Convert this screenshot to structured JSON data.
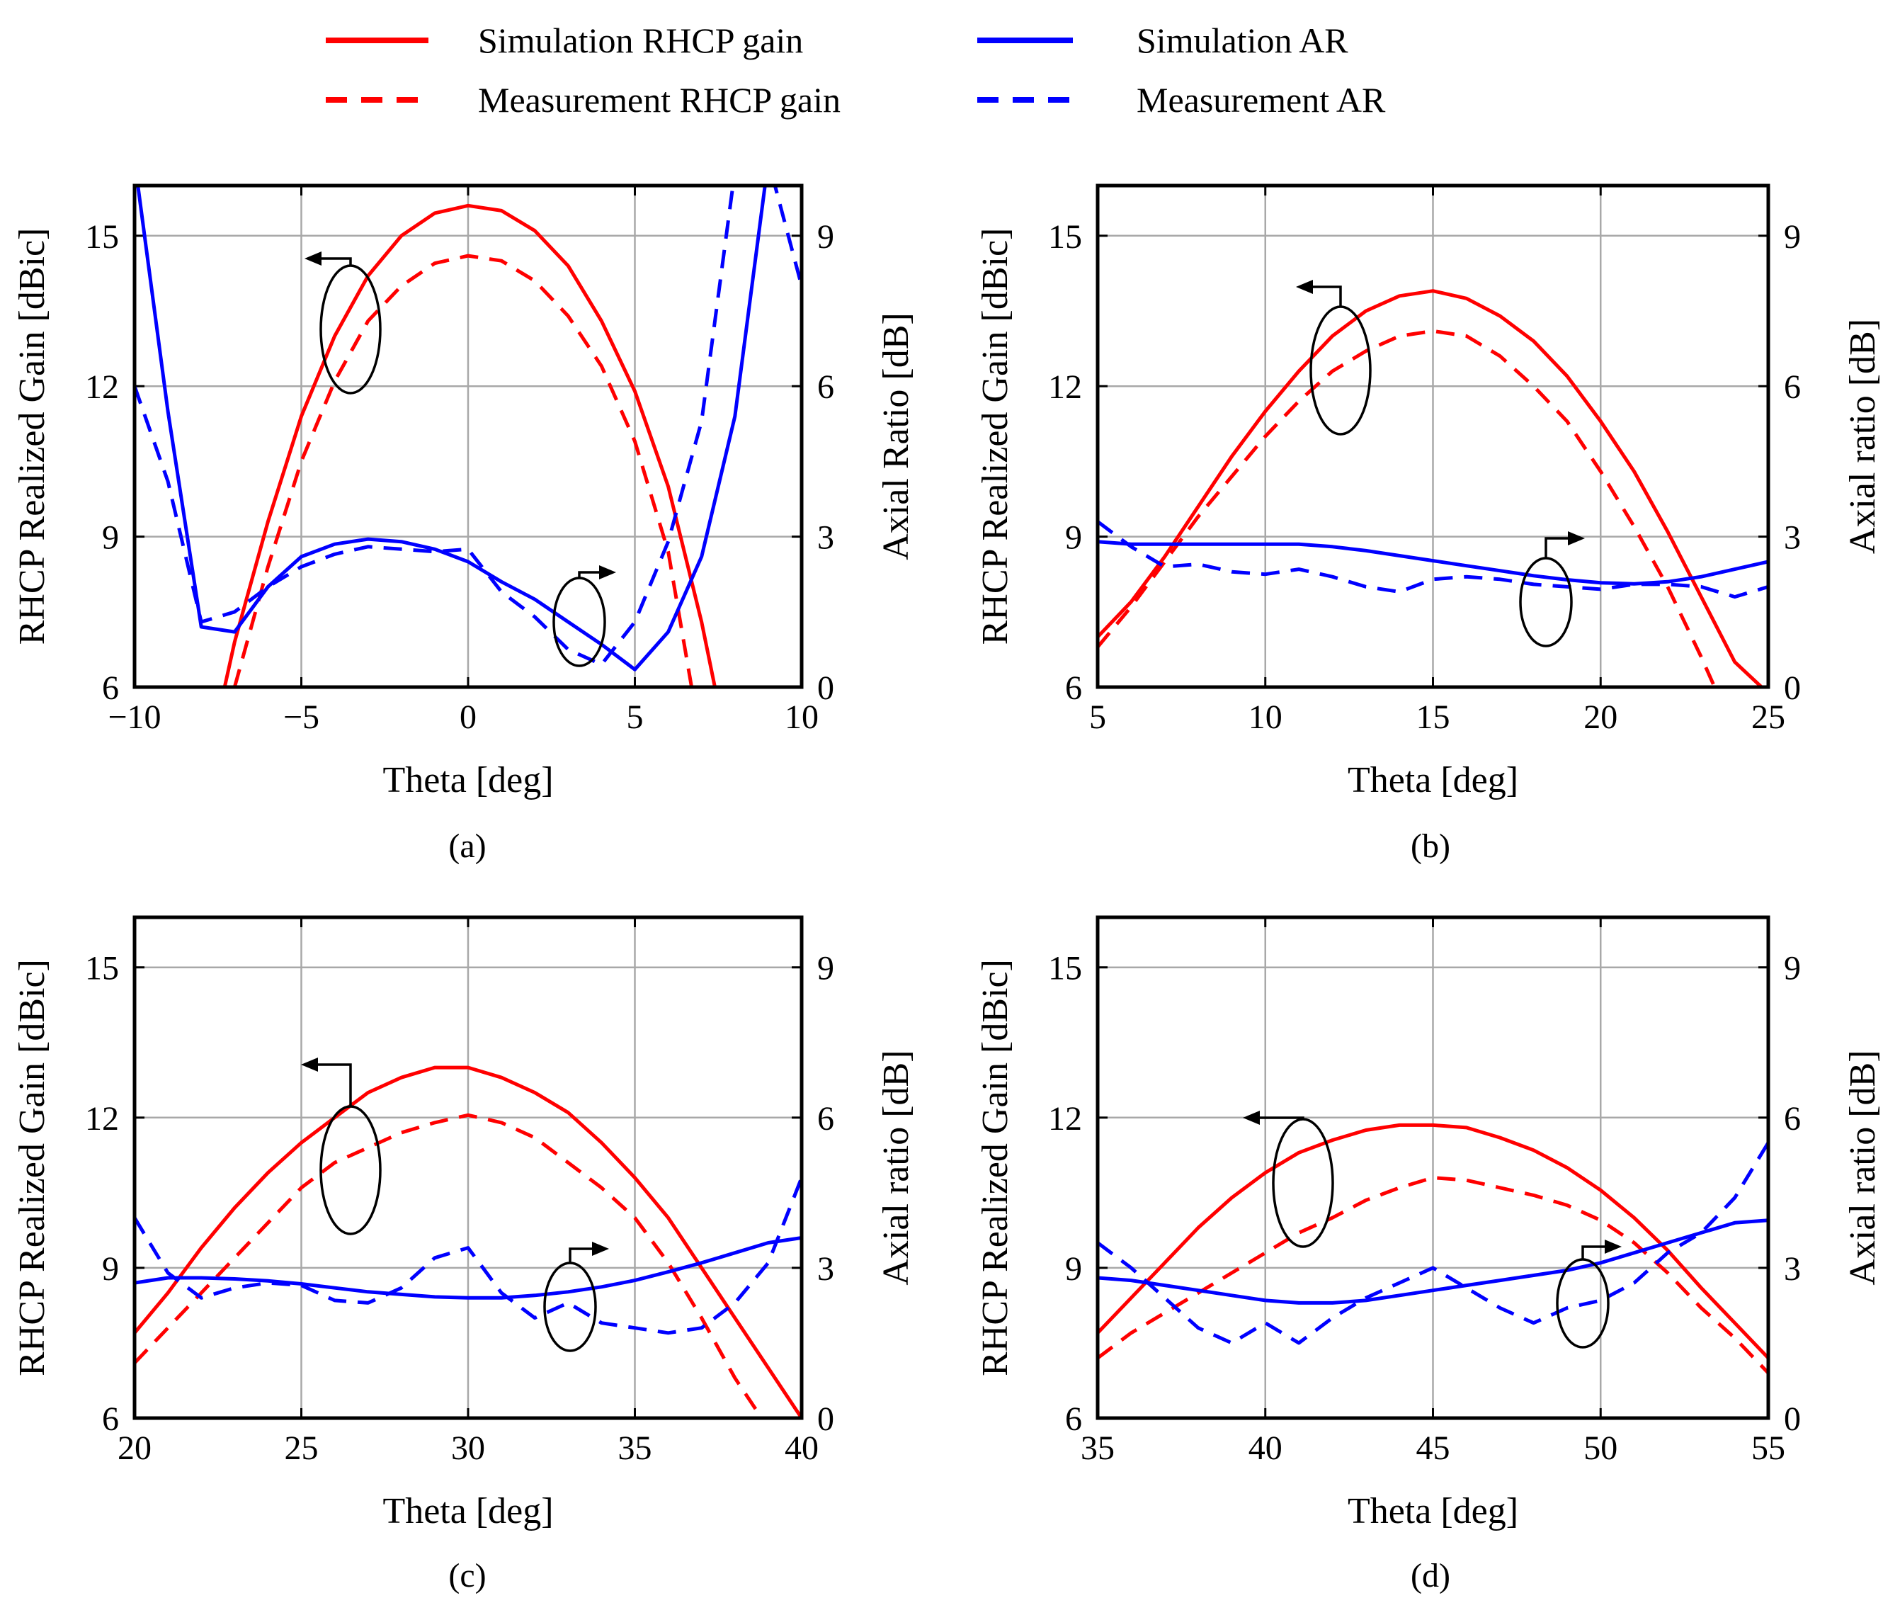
{
  "colors": {
    "gain": "#ff0000",
    "ar": "#0000ff",
    "grid": "#a8a8a8",
    "axis": "#000000"
  },
  "legend": [
    {
      "label": "Simulation RHCP gain",
      "color": "#ff0000",
      "style": "solid"
    },
    {
      "label": "Simulation AR",
      "color": "#0000ff",
      "style": "solid"
    },
    {
      "label": "Measurement RHCP gain",
      "color": "#ff0000",
      "style": "dashed"
    },
    {
      "label": "Measurement AR",
      "color": "#0000ff",
      "style": "dashed"
    }
  ],
  "chart_data": [
    {
      "id": "a",
      "type": "line",
      "sublabel": "(a)",
      "xlabel": "Theta [deg]",
      "ylabel": "RHCP Realized Gain [dBic]",
      "y2label": "Axial Ratio [dB]",
      "xlim": [
        -10,
        10
      ],
      "xticks": [
        -10,
        -5,
        0,
        5,
        10
      ],
      "xtick_labels": [
        "−10",
        "−5",
        "0",
        "5",
        "10"
      ],
      "ylim": [
        6,
        16
      ],
      "yticks": [
        6,
        9,
        12,
        15
      ],
      "y2lim": [
        0,
        10
      ],
      "y2ticks": [
        0,
        3,
        6,
        9
      ],
      "grid": true,
      "series": [
        {
          "name": "Simulation RHCP gain",
          "axis": "left",
          "style": "solid",
          "x": [
            -7.3,
            -7,
            -6,
            -5,
            -4,
            -3,
            -2,
            -1,
            0,
            1,
            2,
            3,
            4,
            5,
            6,
            7,
            7.4
          ],
          "y": [
            6,
            6.9,
            9.3,
            11.4,
            13.0,
            14.2,
            15.0,
            15.45,
            15.6,
            15.5,
            15.1,
            14.4,
            13.3,
            11.9,
            10.0,
            7.3,
            6
          ]
        },
        {
          "name": "Measurement RHCP gain",
          "axis": "left",
          "style": "dashed",
          "x": [
            -7,
            -6,
            -5,
            -4,
            -3,
            -2,
            -1,
            0,
            1,
            2,
            3,
            4,
            5,
            6,
            6.7
          ],
          "y": [
            6,
            8.4,
            10.5,
            12.1,
            13.3,
            14.0,
            14.45,
            14.6,
            14.5,
            14.1,
            13.4,
            12.4,
            10.9,
            8.7,
            6
          ]
        },
        {
          "name": "Simulation AR",
          "axis": "right",
          "style": "solid",
          "x": [
            -10,
            -9,
            -8,
            -7,
            -6,
            -5,
            -4,
            -3,
            -2,
            -1,
            0,
            1,
            2,
            3,
            4,
            5,
            6,
            7,
            8,
            9,
            10
          ],
          "y": [
            10.5,
            5.5,
            1.2,
            1.1,
            2.0,
            2.6,
            2.85,
            2.95,
            2.9,
            2.75,
            2.5,
            2.1,
            1.75,
            1.3,
            0.85,
            0.35,
            1.1,
            2.6,
            5.4,
            10.5,
            10.5
          ]
        },
        {
          "name": "Measurement AR",
          "axis": "right",
          "style": "dashed",
          "x": [
            -10,
            -9,
            -8,
            -7,
            -6,
            -5,
            -4,
            -3,
            -2,
            -1,
            0,
            1,
            2,
            3,
            4,
            5,
            6,
            7,
            8,
            9,
            10
          ],
          "y": [
            6.0,
            4.1,
            1.3,
            1.5,
            2.0,
            2.4,
            2.65,
            2.8,
            2.75,
            2.7,
            2.75,
            1.9,
            1.4,
            0.75,
            0.45,
            1.3,
            2.9,
            5.3,
            10.3,
            10.5,
            8.0
          ]
        }
      ]
    },
    {
      "id": "b",
      "type": "line",
      "sublabel": "(b)",
      "xlabel": "Theta [deg]",
      "ylabel": "RHCP Realized Gain [dBic]",
      "y2label": "Axial ratio [dB]",
      "xlim": [
        5,
        25
      ],
      "xticks": [
        5,
        10,
        15,
        20,
        25
      ],
      "xtick_labels": [
        "5",
        "10",
        "15",
        "20",
        "25"
      ],
      "ylim": [
        6,
        16
      ],
      "yticks": [
        6,
        9,
        12,
        15
      ],
      "y2lim": [
        0,
        10
      ],
      "y2ticks": [
        0,
        3,
        6,
        9
      ],
      "grid": true,
      "series": [
        {
          "name": "Simulation RHCP gain",
          "axis": "left",
          "style": "solid",
          "x": [
            5,
            6,
            7,
            8,
            9,
            10,
            11,
            12,
            13,
            14,
            15,
            16,
            17,
            18,
            19,
            20,
            21,
            22,
            23,
            24,
            24.8
          ],
          "y": [
            7.0,
            7.7,
            8.6,
            9.6,
            10.6,
            11.5,
            12.3,
            13.0,
            13.5,
            13.8,
            13.9,
            13.75,
            13.4,
            12.9,
            12.2,
            11.3,
            10.3,
            9.1,
            7.8,
            6.5,
            6
          ]
        },
        {
          "name": "Measurement RHCP gain",
          "axis": "left",
          "style": "dashed",
          "x": [
            5,
            6,
            7,
            8,
            9,
            10,
            11,
            12,
            13,
            14,
            15,
            16,
            17,
            18,
            19,
            20,
            21,
            22,
            23,
            23.4
          ],
          "y": [
            6.8,
            7.6,
            8.5,
            9.4,
            10.2,
            11.0,
            11.7,
            12.3,
            12.7,
            13.0,
            13.1,
            13.0,
            12.6,
            12.0,
            11.3,
            10.3,
            9.2,
            8.0,
            6.6,
            6
          ]
        },
        {
          "name": "Simulation AR",
          "axis": "right",
          "style": "solid",
          "x": [
            5,
            6,
            7,
            8,
            9,
            10,
            11,
            12,
            13,
            14,
            15,
            16,
            17,
            18,
            19,
            20,
            21,
            22,
            23,
            24,
            25
          ],
          "y": [
            2.9,
            2.85,
            2.85,
            2.85,
            2.85,
            2.85,
            2.85,
            2.8,
            2.72,
            2.62,
            2.52,
            2.42,
            2.32,
            2.22,
            2.14,
            2.08,
            2.06,
            2.1,
            2.2,
            2.35,
            2.5
          ]
        },
        {
          "name": "Measurement AR",
          "axis": "right",
          "style": "dashed",
          "x": [
            5,
            6,
            7,
            8,
            9,
            10,
            11,
            12,
            13,
            14,
            15,
            16,
            17,
            18,
            19,
            20,
            21,
            22,
            23,
            24,
            25
          ],
          "y": [
            3.3,
            2.8,
            2.4,
            2.45,
            2.3,
            2.25,
            2.35,
            2.2,
            2.0,
            1.9,
            2.15,
            2.2,
            2.15,
            2.05,
            2.0,
            1.95,
            2.05,
            2.05,
            2.0,
            1.8,
            2.0
          ]
        }
      ]
    },
    {
      "id": "c",
      "type": "line",
      "sublabel": "(c)",
      "xlabel": "Theta [deg]",
      "ylabel": "RHCP Realized Gain [dBic]",
      "y2label": "Axial ratio [dB]",
      "xlim": [
        20,
        40
      ],
      "xticks": [
        20,
        25,
        30,
        35,
        40
      ],
      "xtick_labels": [
        "20",
        "25",
        "30",
        "35",
        "40"
      ],
      "ylim": [
        6,
        16
      ],
      "yticks": [
        6,
        9,
        12,
        15
      ],
      "y2lim": [
        0,
        10
      ],
      "y2ticks": [
        0,
        3,
        6,
        9
      ],
      "grid": true,
      "series": [
        {
          "name": "Simulation RHCP gain",
          "axis": "left",
          "style": "solid",
          "x": [
            20,
            21,
            22,
            23,
            24,
            25,
            26,
            27,
            28,
            29,
            30,
            31,
            32,
            33,
            34,
            35,
            36,
            37,
            38,
            39,
            40
          ],
          "y": [
            7.7,
            8.5,
            9.4,
            10.2,
            10.9,
            11.5,
            12.0,
            12.5,
            12.8,
            13.0,
            13.0,
            12.8,
            12.5,
            12.1,
            11.5,
            10.8,
            10.0,
            9.0,
            8.0,
            7.0,
            6.0
          ]
        },
        {
          "name": "Measurement RHCP gain",
          "axis": "left",
          "style": "dashed",
          "x": [
            20,
            21,
            22,
            23,
            24,
            25,
            26,
            27,
            28,
            29,
            30,
            31,
            32,
            33,
            34,
            35,
            36,
            37,
            38,
            38.8
          ],
          "y": [
            7.1,
            7.8,
            8.5,
            9.2,
            9.9,
            10.6,
            11.1,
            11.4,
            11.7,
            11.9,
            12.05,
            11.9,
            11.6,
            11.1,
            10.6,
            10.0,
            9.1,
            8.0,
            6.8,
            6
          ]
        },
        {
          "name": "Simulation AR",
          "axis": "right",
          "style": "solid",
          "x": [
            20,
            21,
            22,
            23,
            24,
            25,
            26,
            27,
            28,
            29,
            30,
            31,
            32,
            33,
            34,
            35,
            36,
            37,
            38,
            39,
            40
          ],
          "y": [
            2.7,
            2.8,
            2.8,
            2.78,
            2.74,
            2.68,
            2.6,
            2.52,
            2.47,
            2.42,
            2.4,
            2.4,
            2.45,
            2.52,
            2.62,
            2.75,
            2.92,
            3.1,
            3.3,
            3.5,
            3.6
          ]
        },
        {
          "name": "Measurement AR",
          "axis": "right",
          "style": "dashed",
          "x": [
            20,
            21,
            22,
            23,
            24,
            25,
            26,
            27,
            28,
            29,
            30,
            31,
            32,
            33,
            34,
            35,
            36,
            37,
            38,
            39,
            40
          ],
          "y": [
            4.0,
            2.9,
            2.4,
            2.6,
            2.7,
            2.65,
            2.35,
            2.3,
            2.6,
            3.2,
            3.4,
            2.5,
            2.0,
            2.3,
            1.9,
            1.8,
            1.7,
            1.8,
            2.3,
            3.1,
            4.8
          ]
        }
      ]
    },
    {
      "id": "d",
      "type": "line",
      "sublabel": "(d)",
      "xlabel": "Theta [deg]",
      "ylabel": "RHCP Realized Gain [dBic]",
      "y2label": "Axial ratio [dB]",
      "xlim": [
        35,
        55
      ],
      "xticks": [
        35,
        40,
        45,
        50,
        55
      ],
      "xtick_labels": [
        "35",
        "40",
        "45",
        "50",
        "55"
      ],
      "ylim": [
        6,
        16
      ],
      "yticks": [
        6,
        9,
        12,
        15
      ],
      "y2lim": [
        0,
        10
      ],
      "y2ticks": [
        0,
        3,
        6,
        9
      ],
      "grid": true,
      "series": [
        {
          "name": "Simulation RHCP gain",
          "axis": "left",
          "style": "solid",
          "x": [
            35,
            36,
            37,
            38,
            39,
            40,
            41,
            42,
            43,
            44,
            45,
            46,
            47,
            48,
            49,
            50,
            51,
            52,
            53,
            54,
            55
          ],
          "y": [
            7.7,
            8.4,
            9.1,
            9.8,
            10.4,
            10.9,
            11.3,
            11.55,
            11.75,
            11.85,
            11.85,
            11.8,
            11.6,
            11.35,
            11.0,
            10.55,
            10.0,
            9.35,
            8.6,
            7.9,
            7.2
          ]
        },
        {
          "name": "Measurement RHCP gain",
          "axis": "left",
          "style": "dashed",
          "x": [
            35,
            36,
            37,
            38,
            39,
            40,
            41,
            42,
            43,
            44,
            45,
            46,
            47,
            48,
            49,
            50,
            51,
            52,
            53,
            54,
            55
          ],
          "y": [
            7.2,
            7.7,
            8.1,
            8.5,
            8.9,
            9.3,
            9.7,
            10.0,
            10.35,
            10.6,
            10.8,
            10.75,
            10.6,
            10.45,
            10.25,
            9.95,
            9.5,
            8.9,
            8.2,
            7.6,
            6.9
          ]
        },
        {
          "name": "Simulation AR",
          "axis": "right",
          "style": "solid",
          "x": [
            35,
            36,
            37,
            38,
            39,
            40,
            41,
            42,
            43,
            44,
            45,
            46,
            47,
            48,
            49,
            50,
            51,
            52,
            53,
            54,
            55
          ],
          "y": [
            2.8,
            2.75,
            2.65,
            2.55,
            2.45,
            2.35,
            2.3,
            2.3,
            2.35,
            2.45,
            2.55,
            2.65,
            2.75,
            2.85,
            2.95,
            3.1,
            3.3,
            3.5,
            3.7,
            3.9,
            3.95
          ]
        },
        {
          "name": "Measurement AR",
          "axis": "right",
          "style": "dashed",
          "x": [
            35,
            36,
            37,
            38,
            39,
            40,
            41,
            42,
            43,
            44,
            45,
            46,
            47,
            48,
            49,
            50,
            51,
            52,
            53,
            54,
            55
          ],
          "y": [
            3.5,
            3.0,
            2.4,
            1.8,
            1.5,
            1.9,
            1.5,
            2.0,
            2.4,
            2.7,
            3.0,
            2.6,
            2.2,
            1.9,
            2.2,
            2.35,
            2.7,
            3.3,
            3.7,
            4.4,
            5.5
          ]
        }
      ]
    }
  ]
}
